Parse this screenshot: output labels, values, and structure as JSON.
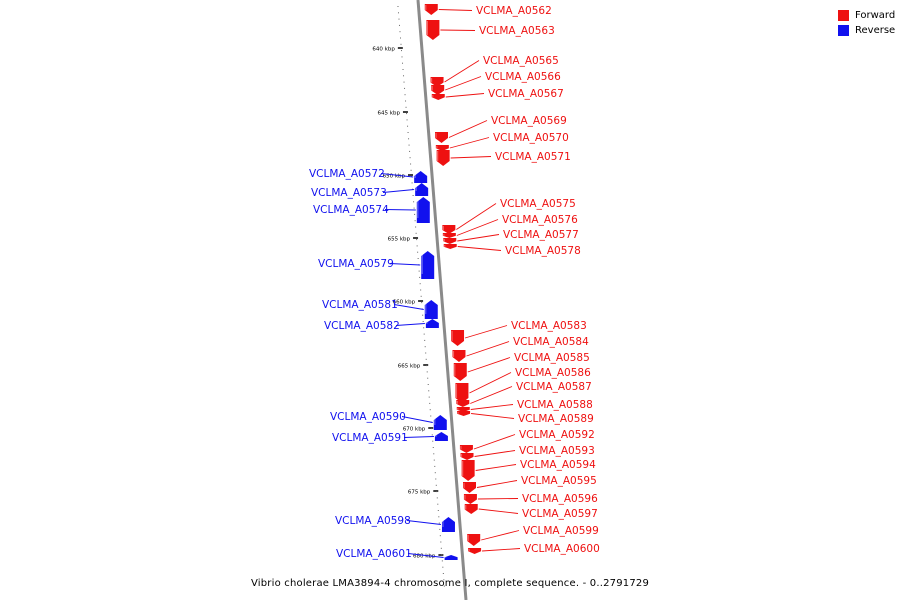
{
  "legend": {
    "items": [
      {
        "label": "Forward",
        "color": "#ee1111"
      },
      {
        "label": "Reverse",
        "color": "#1111ee"
      }
    ]
  },
  "caption": "Vibrio cholerae LMA3894-4 chromosome I, complete sequence. - 0..2791729",
  "ticks": [
    {
      "label": "640 kbp",
      "kbp": 640
    },
    {
      "label": "645 kbp",
      "kbp": 645
    },
    {
      "label": "650 kbp",
      "kbp": 650
    },
    {
      "label": "655 kbp",
      "kbp": 655
    },
    {
      "label": "660 kbp",
      "kbp": 660
    },
    {
      "label": "665 kbp",
      "kbp": 665
    },
    {
      "label": "670 kbp",
      "kbp": 670
    },
    {
      "label": "675 kbp",
      "kbp": 675
    },
    {
      "label": "680 kbp",
      "kbp": 680
    }
  ],
  "genes": [
    {
      "name": "VCLMA_A0562",
      "strand": "forward"
    },
    {
      "name": "VCLMA_A0563",
      "strand": "forward"
    },
    {
      "name": "VCLMA_A0565",
      "strand": "forward"
    },
    {
      "name": "VCLMA_A0566",
      "strand": "forward"
    },
    {
      "name": "VCLMA_A0567",
      "strand": "forward"
    },
    {
      "name": "VCLMA_A0569",
      "strand": "forward"
    },
    {
      "name": "VCLMA_A0570",
      "strand": "forward"
    },
    {
      "name": "VCLMA_A0571",
      "strand": "forward"
    },
    {
      "name": "VCLMA_A0572",
      "strand": "reverse"
    },
    {
      "name": "VCLMA_A0573",
      "strand": "reverse"
    },
    {
      "name": "VCLMA_A0574",
      "strand": "reverse"
    },
    {
      "name": "VCLMA_A0575",
      "strand": "forward"
    },
    {
      "name": "VCLMA_A0576",
      "strand": "forward"
    },
    {
      "name": "VCLMA_A0577",
      "strand": "forward"
    },
    {
      "name": "VCLMA_A0578",
      "strand": "forward"
    },
    {
      "name": "VCLMA_A0579",
      "strand": "reverse"
    },
    {
      "name": "VCLMA_A0581",
      "strand": "reverse"
    },
    {
      "name": "VCLMA_A0582",
      "strand": "reverse"
    },
    {
      "name": "VCLMA_A0583",
      "strand": "forward"
    },
    {
      "name": "VCLMA_A0584",
      "strand": "forward"
    },
    {
      "name": "VCLMA_A0585",
      "strand": "forward"
    },
    {
      "name": "VCLMA_A0586",
      "strand": "forward"
    },
    {
      "name": "VCLMA_A0587",
      "strand": "forward"
    },
    {
      "name": "VCLMA_A0588",
      "strand": "forward"
    },
    {
      "name": "VCLMA_A0589",
      "strand": "forward"
    },
    {
      "name": "VCLMA_A0590",
      "strand": "reverse"
    },
    {
      "name": "VCLMA_A0591",
      "strand": "reverse"
    },
    {
      "name": "VCLMA_A0592",
      "strand": "forward"
    },
    {
      "name": "VCLMA_A0593",
      "strand": "forward"
    },
    {
      "name": "VCLMA_A0594",
      "strand": "forward"
    },
    {
      "name": "VCLMA_A0595",
      "strand": "forward"
    },
    {
      "name": "VCLMA_A0596",
      "strand": "forward"
    },
    {
      "name": "VCLMA_A0597",
      "strand": "forward"
    },
    {
      "name": "VCLMA_A0598",
      "strand": "reverse"
    },
    {
      "name": "VCLMA_A0599",
      "strand": "forward"
    },
    {
      "name": "VCLMA_A0600",
      "strand": "forward"
    },
    {
      "name": "VCLMA_A0601",
      "strand": "reverse"
    }
  ]
}
